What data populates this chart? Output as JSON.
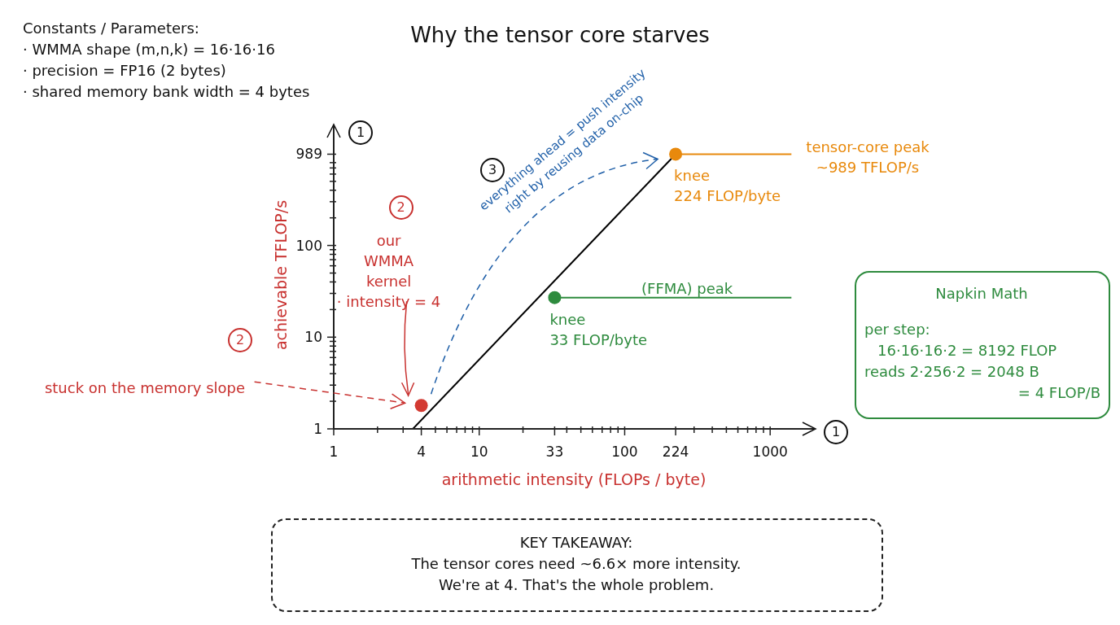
{
  "chart_data": {
    "type": "line",
    "title": "Why the tensor core starves",
    "xlabel": "arithmetic intensity (FLOPs / byte)",
    "ylabel": "achievable TFLOP/s",
    "log": "xy",
    "grid": false,
    "legend": false,
    "marker": "none",
    "xlim": [
      1,
      2000
    ],
    "ylim": [
      1,
      2000
    ],
    "xticks": [
      1,
      {
        "value": 2,
        "label": null
      },
      {
        "value": 3,
        "label": null
      },
      4,
      {
        "value": 5,
        "label": null
      },
      {
        "value": 6,
        "label": null
      },
      {
        "value": 7,
        "label": null
      },
      {
        "value": 8,
        "label": null
      },
      {
        "value": 9,
        "label": null
      },
      10,
      {
        "value": 20,
        "label": null
      },
      33,
      {
        "value": 40,
        "label": null
      },
      {
        "value": 50,
        "label": null
      },
      {
        "value": 60,
        "label": null
      },
      {
        "value": 70,
        "label": null
      },
      {
        "value": 80,
        "label": null
      },
      {
        "value": 90,
        "label": null
      },
      100,
      224,
      {
        "value": 300,
        "label": null
      },
      {
        "value": 400,
        "label": null
      },
      {
        "value": 500,
        "label": null
      },
      {
        "value": 600,
        "label": null
      },
      {
        "value": 700,
        "label": null
      },
      {
        "value": 800,
        "label": null
      },
      {
        "value": 900,
        "label": null
      },
      1000
    ],
    "yticks": [
      1,
      {
        "value": 2,
        "label": null
      },
      {
        "value": 3,
        "label": null
      },
      {
        "value": 4,
        "label": null
      },
      {
        "value": 5,
        "label": null
      },
      {
        "value": 6,
        "label": null
      },
      {
        "value": 7,
        "label": null
      },
      {
        "value": 8,
        "label": null
      },
      {
        "value": 9,
        "label": null
      },
      10,
      {
        "value": 20,
        "label": null
      },
      {
        "value": 30,
        "label": null
      },
      {
        "value": 40,
        "label": null
      },
      {
        "value": 50,
        "label": null
      },
      {
        "value": 60,
        "label": null
      },
      {
        "value": 70,
        "label": null
      },
      {
        "value": 80,
        "label": null
      },
      {
        "value": 90,
        "label": null
      },
      100,
      {
        "value": 200,
        "label": null
      },
      {
        "value": 300,
        "label": null
      },
      {
        "value": 400,
        "label": null
      },
      {
        "value": 500,
        "label": null
      },
      {
        "value": 600,
        "label": null
      },
      {
        "value": 700,
        "label": null
      },
      {
        "value": 800,
        "label": null
      },
      989
    ],
    "series": [
      {
        "color": "#000000",
        "x": [
          3.5,
          224
        ],
        "values": [
          1,
          989
        ]
      },
      {
        "color": "#e8890c",
        "x": [
          224,
          1400
        ],
        "values": [
          989,
          989
        ]
      },
      {
        "color": "#2e8b3e",
        "x": [
          33,
          1400
        ],
        "values": [
          27,
          27
        ]
      },
      {
        "type": "scatter",
        "marker": "circle",
        "color": "#e8890c",
        "x": [
          224
        ],
        "values": [
          989
        ]
      },
      {
        "type": "scatter",
        "marker": "circle",
        "color": "#2e8b3e",
        "x": [
          33
        ],
        "values": [
          27
        ]
      },
      {
        "type": "scatter",
        "marker": "circle",
        "color": "#d33a32",
        "x": [
          4
        ],
        "values": [
          1.8
        ]
      }
    ],
    "annotations": [
      {
        "text": "knee\n224 FLOP/byte",
        "x": 224,
        "y": 989
      },
      "tensor-core peak\n~989 TFLOP/s",
      {
        "text": "knee\n33 FLOP/byte",
        "x": 33,
        "y": 27
      },
      "(FFMA) peak",
      "our\nWMMA\nkernel\n· intensity = 4",
      "stuck on the memory slope",
      "everything ahead = push intensity\nright by reusing data on-chip",
      "1",
      "1",
      "2",
      "2",
      "3",
      "Constants / Parameters:",
      "· WMMA shape (m,n,k) = 16·16·16",
      "· precision = FP16 (2 bytes)",
      "· shared memory bank width = 4 bytes",
      "Napkin Math",
      "per step:",
      "16·16·16·2 = 8192 FLOP",
      "reads 2·256·2 = 2048 B",
      "= 4 FLOP/B",
      "KEY TAKEAWAY:",
      "The tensor cores need ~6.6× more intensity.",
      "We're at 4. That's the whole problem."
    ]
  }
}
